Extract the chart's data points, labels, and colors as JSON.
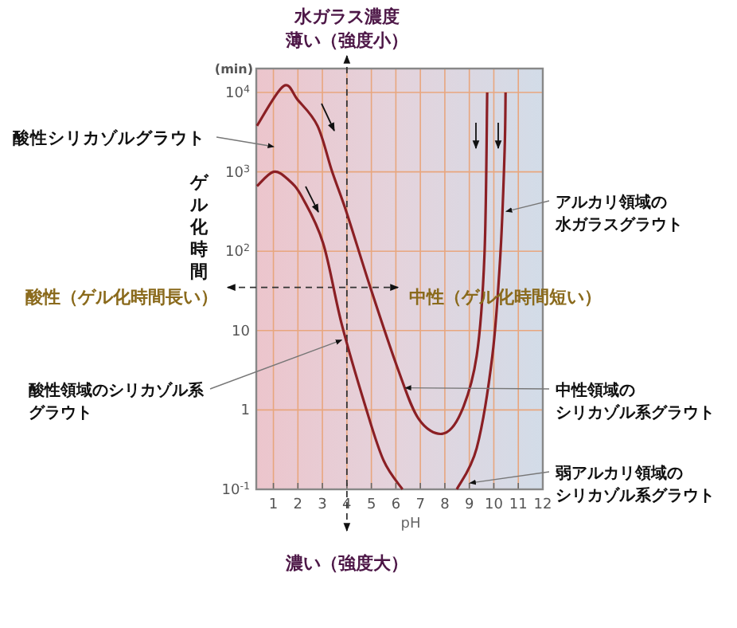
{
  "chart_data": {
    "type": "line",
    "xlabel": "pH",
    "ylabel": "ゲル化時間",
    "log": "y",
    "grid": true,
    "marker": "none",
    "line_style": "solid",
    "xlim": [
      0.3,
      12
    ],
    "xticks": [
      1,
      2,
      3,
      4,
      5,
      6,
      7,
      8,
      9,
      10,
      11,
      12
    ],
    "ylim": [
      0.1,
      20000
    ],
    "yticks": [
      {
        "value": 0.1,
        "label": "10$^{-1}$"
      },
      {
        "value": 1,
        "label": "1"
      },
      {
        "value": 10,
        "label": "10"
      },
      {
        "value": 100,
        "label": "10$^{2}$"
      },
      {
        "value": 1000,
        "label": "10$^{3}$"
      },
      {
        "value": 10000,
        "label": "10$^{4}$"
      }
    ],
    "series": [
      {
        "color": "#8b1f24",
        "x": [
          0.33,
          1.41,
          2.0,
          2.8,
          3.4,
          4,
          4.97,
          6.05,
          6.92,
          7.89,
          8.65,
          9.3,
          9.62,
          9.73
        ],
        "values": [
          3800,
          12000,
          8000,
          3800,
          1000,
          300,
          34,
          3.5,
          0.78,
          0.5,
          0.91,
          4.8,
          93,
          10000
        ]
      },
      {
        "color": "#8b1f24",
        "x": [
          0.33,
          1,
          1.6,
          2.17,
          3.03,
          3.79,
          4.76,
          5.5,
          6.27
        ],
        "values": [
          660,
          1000,
          800,
          480,
          126,
          12,
          1.1,
          0.23,
          0.1
        ]
      },
      {
        "color": "#8b1f24",
        "x": [
          8.49,
          9.3,
          9.94,
          10.27,
          10.44,
          10.48
        ],
        "values": [
          0.1,
          0.33,
          4.8,
          93,
          1800,
          10000
        ]
      }
    ],
    "ref_lines": [
      {
        "axis": "x",
        "value": 4,
        "line_style": "dashed",
        "color": "#333333"
      },
      {
        "axis": "y",
        "value": 35,
        "line_style": "dashed",
        "color": "#333333"
      }
    ],
    "annotations": [
      "水ガラス濃度",
      "薄い（強度小）",
      "濃い（強度大）",
      "酸性（ゲル化時間長い）",
      "中性（ゲル化時間短い）",
      "(min)",
      "酸性シリカゾルグラウト",
      {
        "text": "酸性領域のシリカゾル系グラウト",
        "x": 3.79,
        "y": 7.6
      },
      {
        "text": "中性領域のシリカゾル系グラウト",
        "x": 6.38,
        "y": 1.9
      },
      {
        "text": "アルカリ領域の水ガラスグラウト",
        "x": 10.5,
        "y": 316
      },
      {
        "text": "弱アルカリ領域のシリカゾル系グラウト",
        "x": 9.02,
        "y": 0.12
      }
    ]
  }
}
